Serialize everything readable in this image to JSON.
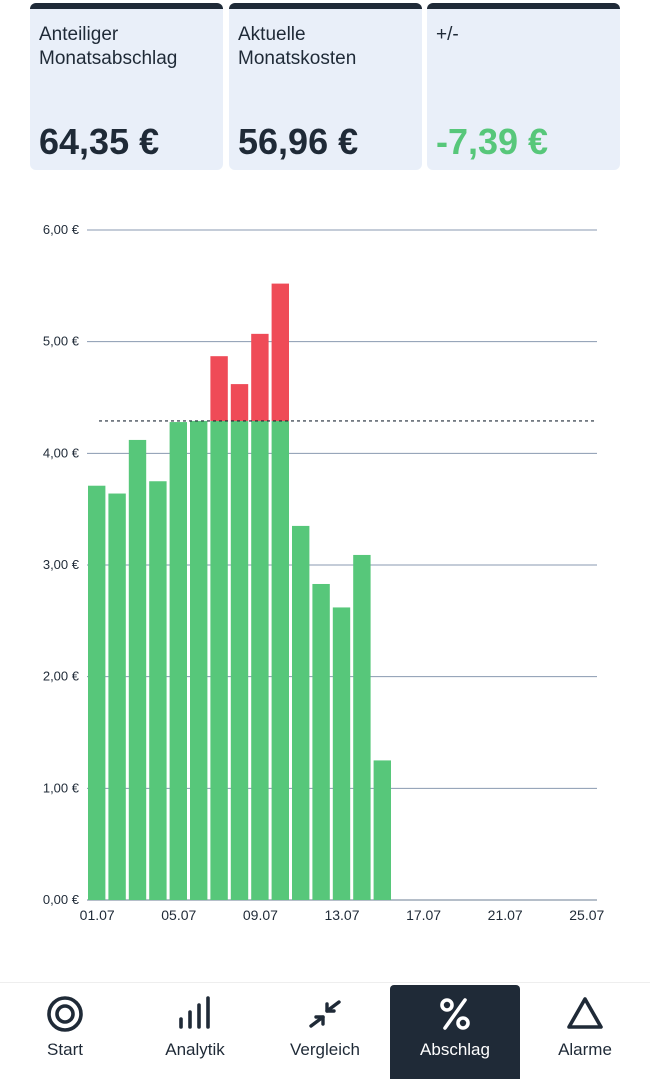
{
  "summary_cards": [
    {
      "label": "Anteiliger Monatsabschlag",
      "value": "64,35 €"
    },
    {
      "label": "Aktuelle Monatskosten",
      "value": "56,96 €"
    },
    {
      "label": "+/-",
      "value": "-7,39 €"
    }
  ],
  "colors": {
    "accent_dark": "#1f2a37",
    "card_bg": "#e9eff9",
    "under_budget": "#57c77a",
    "over_budget": "#ef4b57",
    "grid": "#8a9ab0"
  },
  "chart_data": {
    "type": "bar",
    "title": "",
    "xlabel": "",
    "ylabel": "",
    "ylim": [
      0,
      6
    ],
    "y_ticks": [
      "0,00 €",
      "1,00 €",
      "2,00 €",
      "3,00 €",
      "4,00 €",
      "5,00 €",
      "6,00 €"
    ],
    "x_ticks": [
      "01.07",
      "05.07",
      "09.07",
      "13.07",
      "17.07",
      "21.07",
      "25.07"
    ],
    "x_tick_days": [
      1,
      5,
      9,
      13,
      17,
      21,
      25
    ],
    "x_range_days": [
      1,
      26
    ],
    "budget_line": 4.29,
    "days": [
      1,
      2,
      3,
      4,
      5,
      6,
      7,
      8,
      9,
      10,
      11,
      12,
      13,
      14,
      15
    ],
    "values": [
      3.71,
      3.64,
      4.12,
      3.75,
      4.28,
      4.29,
      4.87,
      4.62,
      5.07,
      5.52,
      3.35,
      2.83,
      2.62,
      3.09,
      1.25
    ],
    "grid": true
  },
  "nav": [
    {
      "label": "Start",
      "icon": "start-icon",
      "active": false
    },
    {
      "label": "Analytik",
      "icon": "analytics-icon",
      "active": false
    },
    {
      "label": "Vergleich",
      "icon": "compare-icon",
      "active": false
    },
    {
      "label": "Abschlag",
      "icon": "percent-icon",
      "active": true
    },
    {
      "label": "Alarme",
      "icon": "alarm-triangle-icon",
      "active": false
    }
  ]
}
